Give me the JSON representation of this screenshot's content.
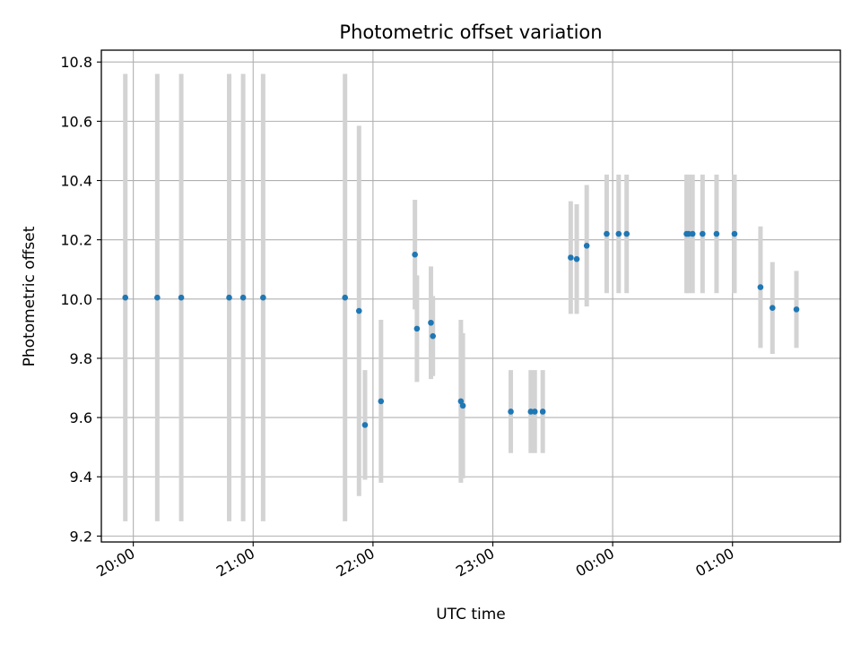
{
  "chart_data": {
    "type": "scatter",
    "title": "Photometric offset variation",
    "xlabel": "UTC time",
    "ylabel": "Photometric offset",
    "x_ticks": [
      {
        "t": "2024-01-01T20:00",
        "label": "20:00"
      },
      {
        "t": "2024-01-01T21:00",
        "label": "21:00"
      },
      {
        "t": "2024-01-01T22:00",
        "label": "22:00"
      },
      {
        "t": "2024-01-01T23:00",
        "label": "23:00"
      },
      {
        "t": "2024-01-02T00:00",
        "label": "00:00"
      },
      {
        "t": "2024-01-02T01:00",
        "label": "01:00"
      }
    ],
    "y_ticks": [
      "9.2",
      "9.4",
      "9.6",
      "9.8",
      "10.0",
      "10.2",
      "10.4",
      "10.6",
      "10.8"
    ],
    "xlim": [
      "2024-01-01T19:44",
      "2024-01-02T01:54"
    ],
    "ylim": [
      9.18,
      10.84
    ],
    "grid": true,
    "point_color": "#1f77b4",
    "errorbar_color": "#d3d3d3",
    "points": [
      {
        "t": "2024-01-01T19:56",
        "y": 10.005,
        "err": 0.755
      },
      {
        "t": "2024-01-01T20:12",
        "y": 10.005,
        "err": 0.755
      },
      {
        "t": "2024-01-01T20:24",
        "y": 10.005,
        "err": 0.755
      },
      {
        "t": "2024-01-01T20:48",
        "y": 10.005,
        "err": 0.755
      },
      {
        "t": "2024-01-01T20:55",
        "y": 10.005,
        "err": 0.755
      },
      {
        "t": "2024-01-01T21:05",
        "y": 10.005,
        "err": 0.755
      },
      {
        "t": "2024-01-01T21:46",
        "y": 10.005,
        "err": 0.755
      },
      {
        "t": "2024-01-01T21:53",
        "y": 9.96,
        "err": 0.625
      },
      {
        "t": "2024-01-01T21:56",
        "y": 9.575,
        "err": 0.185
      },
      {
        "t": "2024-01-01T22:04",
        "y": 9.655,
        "err": 0.275
      },
      {
        "t": "2024-01-01T22:21",
        "y": 10.15,
        "err": 0.185
      },
      {
        "t": "2024-01-01T22:22",
        "y": 9.9,
        "err": 0.18
      },
      {
        "t": "2024-01-01T22:29",
        "y": 9.92,
        "err": 0.19
      },
      {
        "t": "2024-01-01T22:30",
        "y": 9.875,
        "err": 0.135
      },
      {
        "t": "2024-01-01T22:44",
        "y": 9.655,
        "err": 0.275
      },
      {
        "t": "2024-01-01T22:45",
        "y": 9.64,
        "err": 0.245
      },
      {
        "t": "2024-01-01T23:09",
        "y": 9.62,
        "err": 0.14
      },
      {
        "t": "2024-01-01T23:19",
        "y": 9.62,
        "err": 0.14
      },
      {
        "t": "2024-01-01T23:21",
        "y": 9.62,
        "err": 0.14
      },
      {
        "t": "2024-01-01T23:25",
        "y": 9.62,
        "err": 0.14
      },
      {
        "t": "2024-01-01T23:39",
        "y": 10.14,
        "err": 0.19
      },
      {
        "t": "2024-01-01T23:42",
        "y": 10.135,
        "err": 0.185
      },
      {
        "t": "2024-01-01T23:47",
        "y": 10.18,
        "err": 0.205
      },
      {
        "t": "2024-01-01T23:57",
        "y": 10.22,
        "err": 0.2
      },
      {
        "t": "2024-01-02T00:03",
        "y": 10.22,
        "err": 0.2
      },
      {
        "t": "2024-01-02T00:07",
        "y": 10.22,
        "err": 0.2
      },
      {
        "t": "2024-01-02T00:37",
        "y": 10.22,
        "err": 0.2
      },
      {
        "t": "2024-01-02T00:38",
        "y": 10.22,
        "err": 0.2
      },
      {
        "t": "2024-01-02T00:40",
        "y": 10.22,
        "err": 0.2
      },
      {
        "t": "2024-01-02T00:45",
        "y": 10.22,
        "err": 0.2
      },
      {
        "t": "2024-01-02T00:52",
        "y": 10.22,
        "err": 0.2
      },
      {
        "t": "2024-01-02T01:01",
        "y": 10.22,
        "err": 0.2
      },
      {
        "t": "2024-01-02T01:14",
        "y": 10.04,
        "err": 0.205
      },
      {
        "t": "2024-01-02T01:20",
        "y": 9.97,
        "err": 0.155
      },
      {
        "t": "2024-01-02T01:32",
        "y": 9.965,
        "err": 0.13
      }
    ]
  }
}
